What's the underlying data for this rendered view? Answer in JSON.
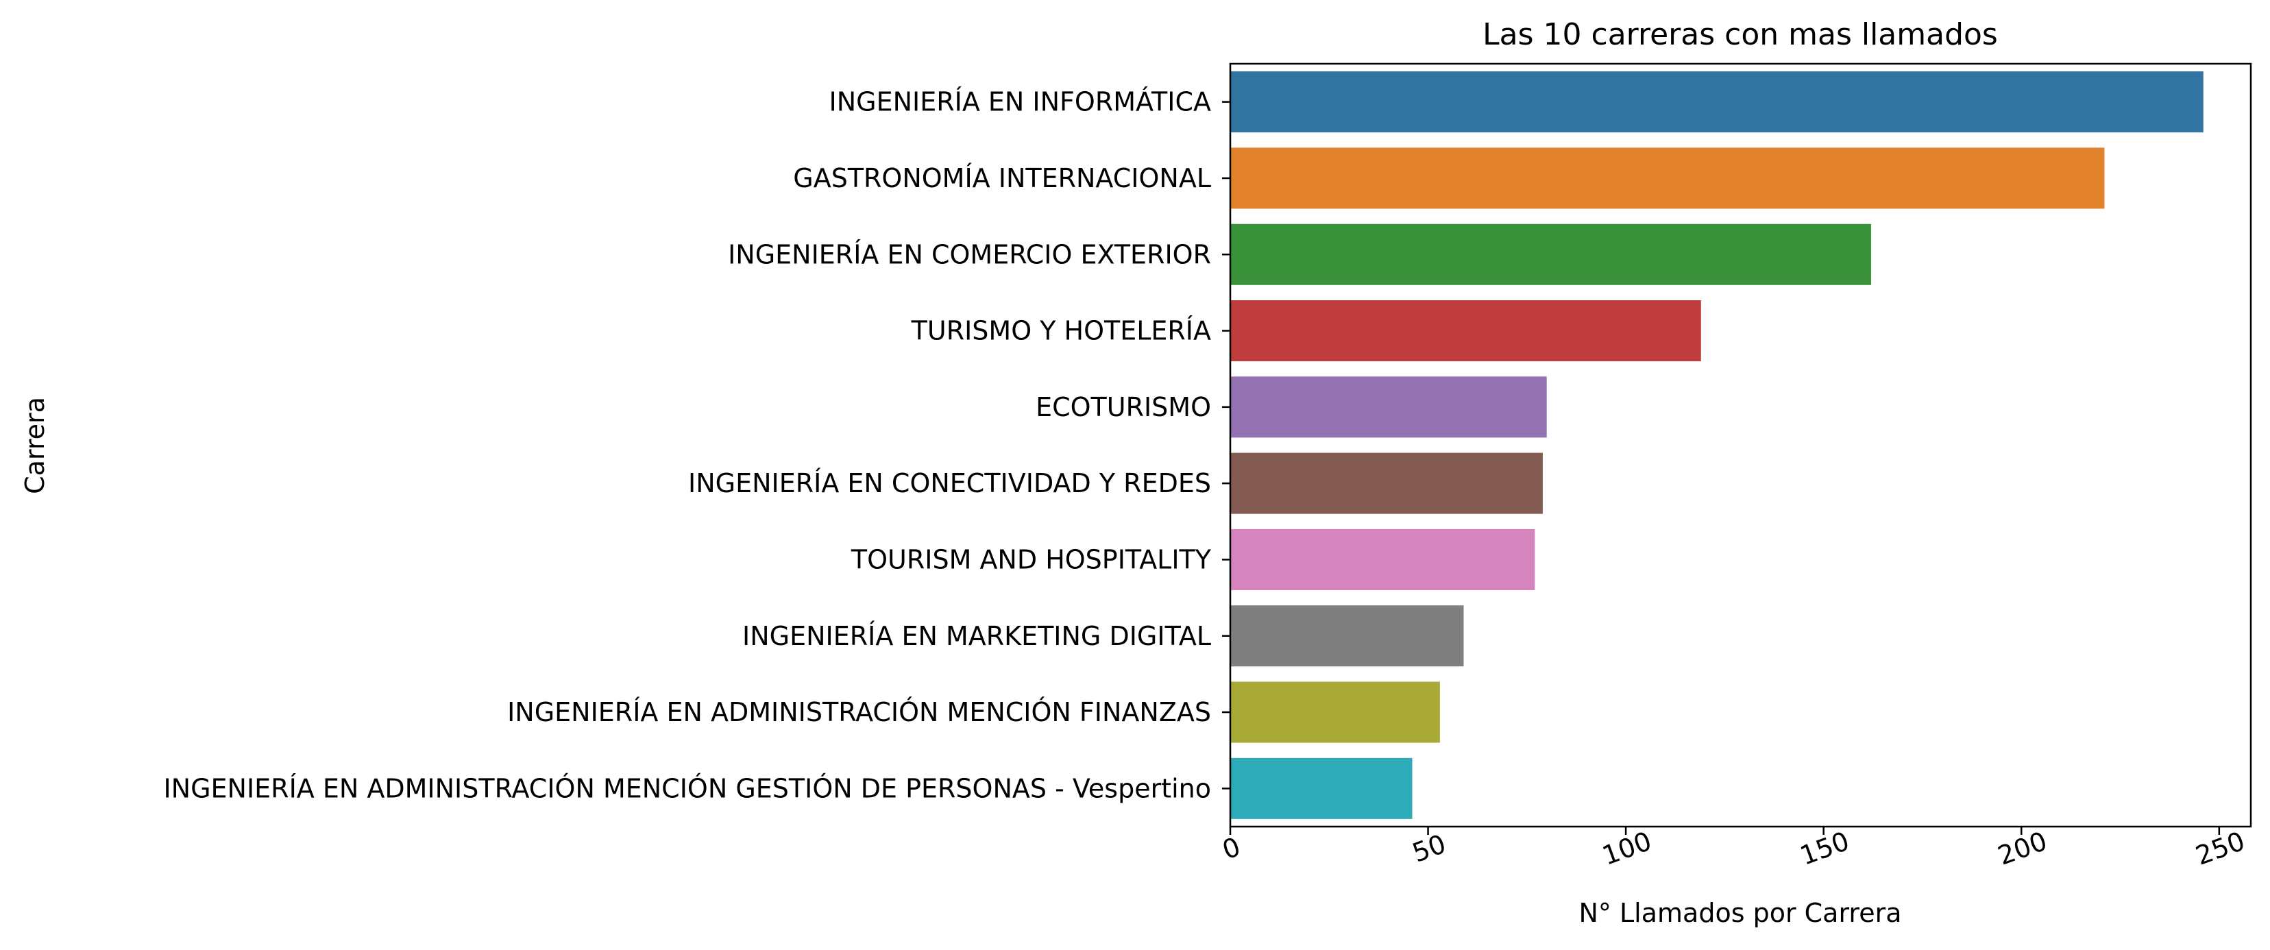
{
  "chart_data": {
    "type": "bar",
    "orientation": "horizontal",
    "title": "Las 10 carreras con mas llamados",
    "xlabel": "N° Llamados por Carrera",
    "ylabel": "Carrera",
    "xlim": [
      0,
      258
    ],
    "xticks": [
      0,
      50,
      100,
      150,
      200,
      250
    ],
    "xtick_labels": [
      "0",
      "50",
      "100",
      "150",
      "200",
      "250"
    ],
    "xtick_rotation_deg": 20,
    "grid": false,
    "categories": [
      "INGENIERÍA EN INFORMÁTICA",
      "GASTRONOMÍA INTERNACIONAL",
      "INGENIERÍA EN COMERCIO EXTERIOR",
      "TURISMO Y HOTELERÍA",
      "ECOTURISMO",
      "INGENIERÍA EN CONECTIVIDAD Y REDES",
      "TOURISM AND HOSPITALITY",
      "INGENIERÍA EN MARKETING DIGITAL",
      "INGENIERÍA EN ADMINISTRACIÓN MENCIÓN FINANZAS",
      "INGENIERÍA EN ADMINISTRACIÓN MENCIÓN GESTIÓN DE PERSONAS - Vespertino"
    ],
    "values": [
      246,
      221,
      162,
      119,
      80,
      79,
      77,
      59,
      53,
      46
    ],
    "colors": [
      "#3274a1",
      "#e1812c",
      "#3a923a",
      "#c03d3e",
      "#9372b2",
      "#845b53",
      "#d684bd",
      "#7f7f7f",
      "#a9aa35",
      "#2eabb8"
    ]
  }
}
